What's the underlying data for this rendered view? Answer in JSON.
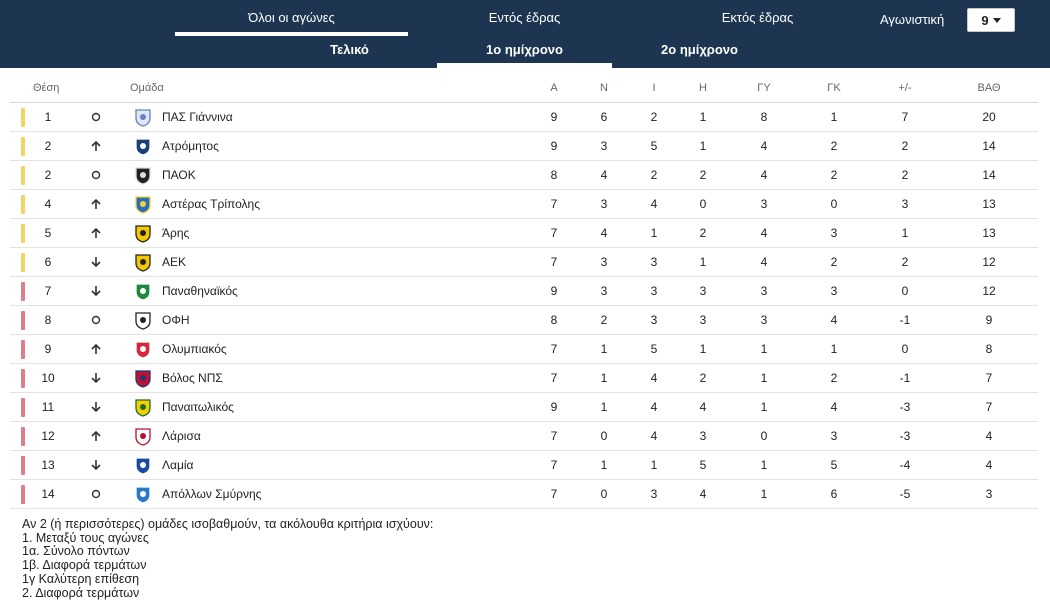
{
  "tabs_main": [
    {
      "label": "Όλοι οι αγώνες",
      "active": true
    },
    {
      "label": "Εντός έδρας",
      "active": false
    },
    {
      "label": "Εκτός έδρας",
      "active": false
    }
  ],
  "tabs_sub": [
    {
      "label": "Τελικό",
      "active": false
    },
    {
      "label": "1ο ημίχρονο",
      "active": true
    },
    {
      "label": "2ο ημίχρονο",
      "active": false
    }
  ],
  "round": {
    "label": "Αγωνιστική",
    "value": "9"
  },
  "colors": {
    "header_bg": "#1d3550",
    "yellow": "#f3d565",
    "red": "#e07c8b"
  },
  "table": {
    "headers": {
      "pos": "Θέση",
      "team": "Ομάδα",
      "A": "Α",
      "N": "Ν",
      "I": "Ι",
      "H": "Η",
      "GY": "ΓΥ",
      "GK": "ΓΚ",
      "diff": "+/-",
      "pts": "ΒΑΘ"
    },
    "rows": [
      {
        "pos": "1",
        "trend": "same",
        "zone": "yellow",
        "logo": "pas-giannina-logo",
        "team": "ΠΑΣ Γιάννινα",
        "A": "9",
        "N": "6",
        "I": "2",
        "H": "1",
        "GY": "8",
        "GK": "1",
        "diff": "7",
        "pts": "20"
      },
      {
        "pos": "2",
        "trend": "up",
        "zone": "yellow",
        "logo": "atromitos-logo",
        "team": "Ατρόμητος",
        "A": "9",
        "N": "3",
        "I": "5",
        "H": "1",
        "GY": "4",
        "GK": "2",
        "diff": "2",
        "pts": "14"
      },
      {
        "pos": "2",
        "trend": "same",
        "zone": "yellow",
        "logo": "paok-logo",
        "team": "ΠΑΟΚ",
        "A": "8",
        "N": "4",
        "I": "2",
        "H": "2",
        "GY": "4",
        "GK": "2",
        "diff": "2",
        "pts": "14"
      },
      {
        "pos": "4",
        "trend": "up",
        "zone": "yellow",
        "logo": "asteras-logo",
        "team": "Αστέρας Τρίπολης",
        "A": "7",
        "N": "3",
        "I": "4",
        "H": "0",
        "GY": "3",
        "GK": "0",
        "diff": "3",
        "pts": "13"
      },
      {
        "pos": "5",
        "trend": "up",
        "zone": "yellow",
        "logo": "aris-logo",
        "team": "Άρης",
        "A": "7",
        "N": "4",
        "I": "1",
        "H": "2",
        "GY": "4",
        "GK": "3",
        "diff": "1",
        "pts": "13"
      },
      {
        "pos": "6",
        "trend": "down",
        "zone": "yellow",
        "logo": "aek-logo",
        "team": "ΑΕΚ",
        "A": "7",
        "N": "3",
        "I": "3",
        "H": "1",
        "GY": "4",
        "GK": "2",
        "diff": "2",
        "pts": "12"
      },
      {
        "pos": "7",
        "trend": "down",
        "zone": "red",
        "logo": "panathinaikos-logo",
        "team": "Παναθηναϊκός",
        "A": "9",
        "N": "3",
        "I": "3",
        "H": "3",
        "GY": "3",
        "GK": "3",
        "diff": "0",
        "pts": "12"
      },
      {
        "pos": "8",
        "trend": "same",
        "zone": "red",
        "logo": "ofi-logo",
        "team": "ΟΦΗ",
        "A": "8",
        "N": "2",
        "I": "3",
        "H": "3",
        "GY": "3",
        "GK": "4",
        "diff": "-1",
        "pts": "9"
      },
      {
        "pos": "9",
        "trend": "up",
        "zone": "red",
        "logo": "olympiacos-logo",
        "team": "Ολυμπιακός",
        "A": "7",
        "N": "1",
        "I": "5",
        "H": "1",
        "GY": "1",
        "GK": "1",
        "diff": "0",
        "pts": "8"
      },
      {
        "pos": "10",
        "trend": "down",
        "zone": "red",
        "logo": "volos-logo",
        "team": "Βόλος ΝΠΣ",
        "A": "7",
        "N": "1",
        "I": "4",
        "H": "2",
        "GY": "1",
        "GK": "2",
        "diff": "-1",
        "pts": "7"
      },
      {
        "pos": "11",
        "trend": "down",
        "zone": "red",
        "logo": "panetolikos-logo",
        "team": "Παναιτωλικός",
        "A": "9",
        "N": "1",
        "I": "4",
        "H": "4",
        "GY": "1",
        "GK": "4",
        "diff": "-3",
        "pts": "7"
      },
      {
        "pos": "12",
        "trend": "up",
        "zone": "red",
        "logo": "larisa-logo",
        "team": "Λάρισα",
        "A": "7",
        "N": "0",
        "I": "4",
        "H": "3",
        "GY": "0",
        "GK": "3",
        "diff": "-3",
        "pts": "4"
      },
      {
        "pos": "13",
        "trend": "down",
        "zone": "red",
        "logo": "lamia-logo",
        "team": "Λαμία",
        "A": "7",
        "N": "1",
        "I": "1",
        "H": "5",
        "GY": "1",
        "GK": "5",
        "diff": "-4",
        "pts": "4"
      },
      {
        "pos": "14",
        "trend": "same",
        "zone": "red",
        "logo": "apollon-smyrnis-logo",
        "team": "Απόλλων Σμύρνης",
        "A": "7",
        "N": "0",
        "I": "3",
        "H": "4",
        "GY": "1",
        "GK": "6",
        "diff": "-5",
        "pts": "3"
      }
    ]
  },
  "criteria": {
    "intro": "Αν 2 (ή περισσότερες) ομάδες ισοβαθμούν, τα ακόλουθα κριτήρια ισχύουν:",
    "lines": [
      "1. Μεταξύ τους αγώνες",
      "1α. Σύνολο πόντων",
      "1β. Διαφορά τερμάτων",
      "1γ Καλύτερη επίθεση",
      "2. Διαφορά τερμάτων"
    ]
  }
}
